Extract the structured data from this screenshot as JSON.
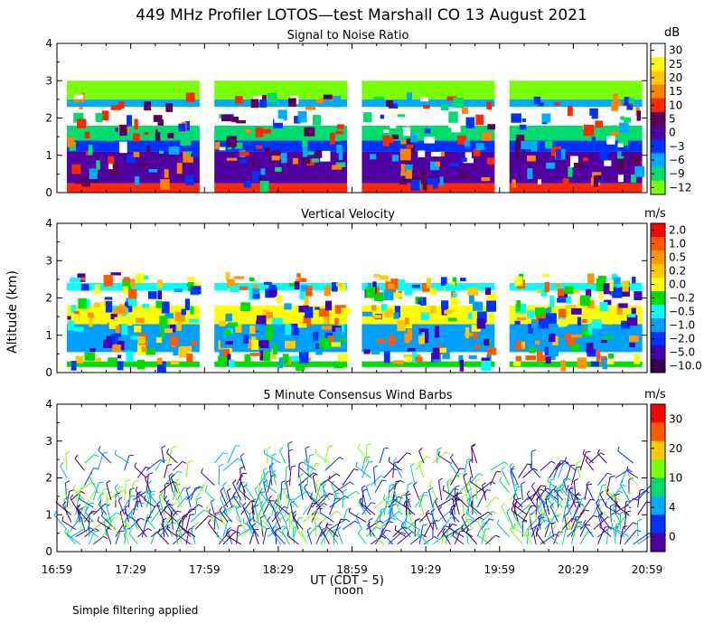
{
  "chart_data": [
    {
      "type": "heatmap",
      "title": "449 MHz Profiler LOTOS—test Marshall CO 13 August 2021",
      "subtitle": "Signal to Noise Ratio",
      "ylabel": "Altitude (km)",
      "ylim": [
        0,
        4
      ],
      "yticks": [
        "0",
        "1",
        "2",
        "3",
        "4"
      ],
      "xlim_hours": [
        16.983,
        20.983
      ],
      "colorbar_unit": "dB",
      "colorbar_labels": [
        "30",
        "25",
        "20",
        "15",
        "10",
        "5",
        "0",
        "−3",
        "−6",
        "−9",
        "−12"
      ],
      "colorbar_colors": [
        "#ffffff",
        "#ffff00",
        "#ffc800",
        "#ff8200",
        "#ff2800",
        "#5a005a",
        "#5000a0",
        "#0032ff",
        "#00aaff",
        "#00dc6e",
        "#78ff00"
      ],
      "data_segments": [
        [
          17.05,
          17.95
        ],
        [
          18.05,
          18.95
        ],
        [
          19.05,
          19.95
        ],
        [
          20.05,
          20.95
        ]
      ],
      "layers": [
        {
          "from_km": 0.0,
          "to_km": 0.25,
          "color": "#ff2800"
        },
        {
          "from_km": 0.25,
          "to_km": 1.1,
          "color": "#5000a0"
        },
        {
          "from_km": 1.1,
          "to_km": 1.4,
          "color": "#0032ff"
        },
        {
          "from_km": 1.4,
          "to_km": 1.8,
          "color": "#00dc6e"
        },
        {
          "from_km": 1.8,
          "to_km": 2.3,
          "color": "#ffffff"
        },
        {
          "from_km": 2.3,
          "to_km": 2.5,
          "color": "#00aaff"
        },
        {
          "from_km": 2.5,
          "to_km": 3.0,
          "color": "#78ff00"
        }
      ]
    },
    {
      "type": "heatmap",
      "subtitle": "Vertical Velocity",
      "ylabel": "Altitude (km)",
      "ylim": [
        0,
        4
      ],
      "yticks": [
        "0",
        "1",
        "2",
        "3",
        "4"
      ],
      "colorbar_unit": "m/s",
      "colorbar_labels": [
        "2.0",
        "1.0",
        "0.5",
        "0.2",
        "0.0",
        "−0.2",
        "−0.5",
        "−1.0",
        "−2.0",
        "−5.0",
        "−10.0"
      ],
      "colorbar_colors": [
        "#ff0000",
        "#ff5a00",
        "#ff9600",
        "#ffc800",
        "#ffff00",
        "#00dc00",
        "#00ffff",
        "#00a0ff",
        "#0032ff",
        "#4600b4",
        "#3c0050"
      ],
      "data_segments": [
        [
          17.05,
          17.95
        ],
        [
          18.05,
          18.95
        ],
        [
          19.05,
          19.95
        ],
        [
          20.05,
          20.95
        ]
      ],
      "layers": [
        {
          "from_km": 0.15,
          "to_km": 0.3,
          "color": "#00dc00"
        },
        {
          "from_km": 0.55,
          "to_km": 1.3,
          "color": "#00a0ff"
        },
        {
          "from_km": 1.3,
          "to_km": 1.8,
          "color": "#ffff00"
        },
        {
          "from_km": 2.2,
          "to_km": 2.4,
          "color": "#00ffff"
        }
      ]
    },
    {
      "type": "scatter",
      "subtitle": "5 Minute Consensus Wind Barbs",
      "xlabel": "UT  (CDT – 5)",
      "xlabel2": "noon",
      "ylim": [
        0,
        4
      ],
      "yticks": [
        "0",
        "1",
        "2",
        "3",
        "4"
      ],
      "xtick_labels": [
        "16:59",
        "17:29",
        "17:59",
        "18:29",
        "18:59",
        "19:29",
        "19:59",
        "20:29",
        "20:59"
      ],
      "colorbar_unit": "m/s",
      "colorbar_labels": [
        "30",
        "20",
        "10",
        "4",
        "0"
      ],
      "colorbar_colors": [
        "#ff0000",
        "#ff5a00",
        "#ffc800",
        "#78ff00",
        "#00dc6e",
        "#00aaff",
        "#0032ff",
        "#5000a0"
      ],
      "wind_layers_km": [
        0.2,
        0.4,
        0.6,
        0.8,
        1.0,
        1.2,
        1.4,
        1.6,
        1.8,
        2.0,
        2.2,
        2.4
      ]
    }
  ],
  "footer_note": "Simple filtering applied"
}
